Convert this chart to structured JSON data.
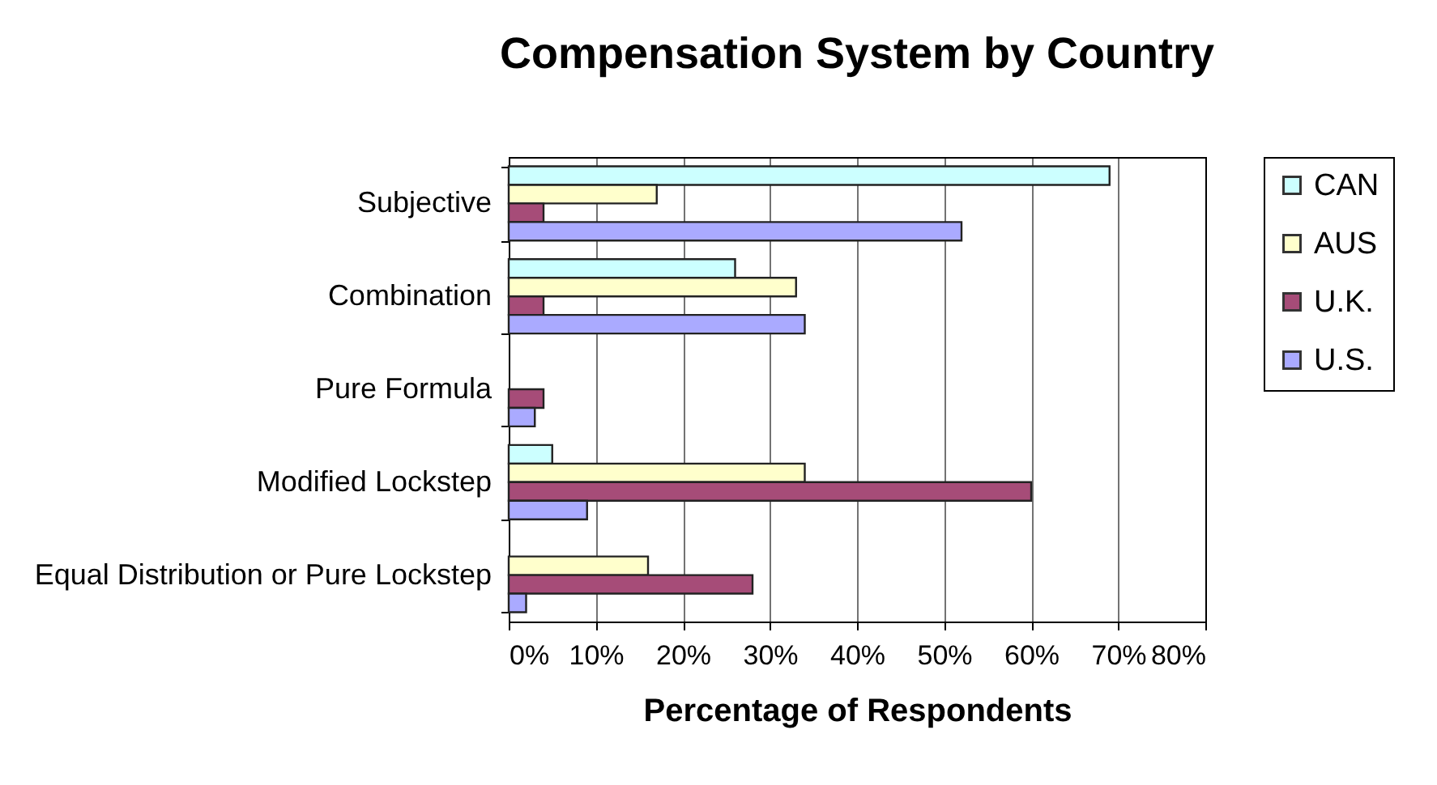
{
  "chart_data": {
    "type": "bar",
    "orientation": "horizontal",
    "title": "Compensation System by Country",
    "xlabel": "Percentage of Respondents",
    "categories": [
      "Subjective",
      "Combination",
      "Pure Formula",
      "Modified Lockstep",
      "Equal Distribution or Pure Lockstep"
    ],
    "series": [
      {
        "name": "CAN",
        "color": "#ccffff",
        "values": [
          69,
          26,
          0,
          5,
          0
        ]
      },
      {
        "name": "AUS",
        "color": "#ffffcc",
        "values": [
          17,
          33,
          0,
          34,
          16
        ]
      },
      {
        "name": "U.K.",
        "color": "#a64c78",
        "values": [
          4,
          4,
          4,
          60,
          28
        ]
      },
      {
        "name": "U.S.",
        "color": "#aaaaff",
        "values": [
          52,
          34,
          3,
          9,
          2
        ]
      }
    ],
    "xlim": [
      0,
      80
    ],
    "xticks": [
      {
        "value": 0,
        "label": "0%"
      },
      {
        "value": 10,
        "label": "10%"
      },
      {
        "value": 20,
        "label": "20%"
      },
      {
        "value": 30,
        "label": "30%"
      },
      {
        "value": 40,
        "label": "40%"
      },
      {
        "value": 50,
        "label": "50%"
      },
      {
        "value": 60,
        "label": "60%"
      },
      {
        "value": 70,
        "label": "70%"
      },
      {
        "value": 80,
        "label": "80%"
      }
    ],
    "grid": "x",
    "legend": "right"
  }
}
